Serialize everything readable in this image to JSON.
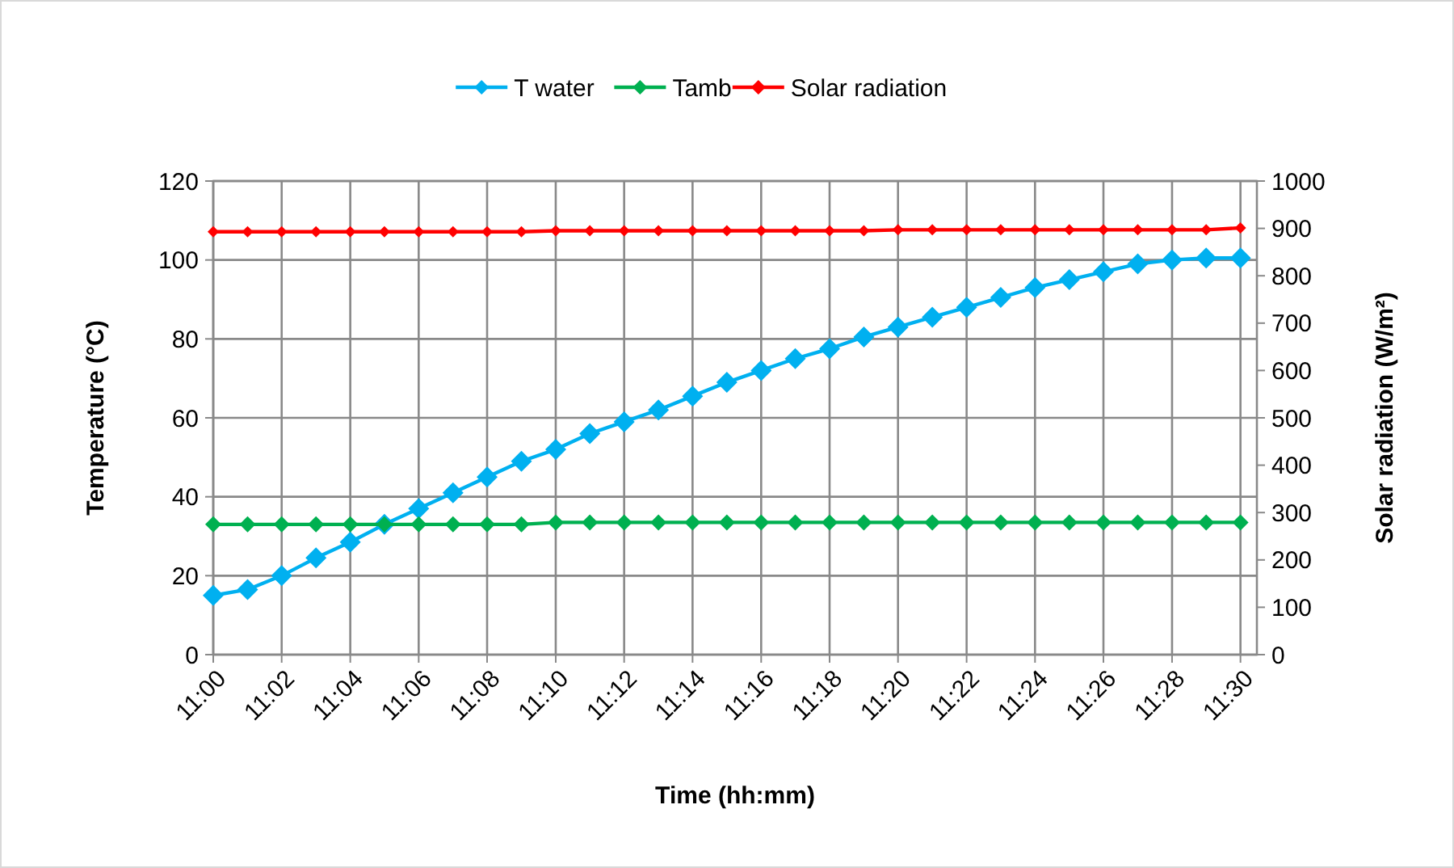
{
  "chart_data": {
    "type": "line",
    "xlabel": "Time (hh:mm)",
    "ylabel": "Temperature (°C)",
    "y2label": "Solar radiation  (W/m²)",
    "x": [
      11,
      11.0167,
      11.0333,
      11.05,
      11.0667,
      11.0833,
      11.1,
      11.1167,
      11.1333,
      11.15,
      11.1667,
      11.1833,
      11.2,
      11.2167,
      11.2333,
      11.25,
      11.2667,
      11.2833,
      11.3,
      11.3167,
      11.3333,
      11.35,
      11.3667,
      11.3833,
      11.4,
      11.4167,
      11.4333,
      11.45,
      11.4667,
      11.4833,
      11.5
    ],
    "xlim": [
      11,
      11.508
    ],
    "xticks": [
      {
        "value": 11,
        "label": "11:00"
      },
      {
        "value": 11.0333,
        "label": "11:02"
      },
      {
        "value": 11.0667,
        "label": "11:04"
      },
      {
        "value": 11.1,
        "label": "11:06"
      },
      {
        "value": 11.1333,
        "label": "11:08"
      },
      {
        "value": 11.1667,
        "label": "11:10"
      },
      {
        "value": 11.2,
        "label": "11:12"
      },
      {
        "value": 11.2333,
        "label": "11:14"
      },
      {
        "value": 11.2667,
        "label": "11:16"
      },
      {
        "value": 11.3,
        "label": "11:18"
      },
      {
        "value": 11.3333,
        "label": "11:20"
      },
      {
        "value": 11.3667,
        "label": "11:22"
      },
      {
        "value": 11.4,
        "label": "11:24"
      },
      {
        "value": 11.4333,
        "label": "11:26"
      },
      {
        "value": 11.4667,
        "label": "11:28"
      },
      {
        "value": 11.5,
        "label": "11:30"
      }
    ],
    "ylim": [
      0,
      120
    ],
    "yticks": [
      0,
      20,
      40,
      60,
      80,
      100,
      120
    ],
    "y2lim": [
      0,
      1000
    ],
    "y2ticks": [
      0,
      100,
      200,
      300,
      400,
      500,
      600,
      700,
      800,
      900,
      1000
    ],
    "grid": true,
    "legend": "top",
    "marker": "diamond",
    "series": [
      {
        "name": "T water",
        "color": "#00b0f0",
        "values": [
          15,
          16.5,
          20,
          24.5,
          28.5,
          33,
          37,
          41,
          45,
          49,
          52,
          56,
          59,
          62,
          65.5,
          69,
          72,
          75,
          77.5,
          80.5,
          83,
          85.5,
          88,
          90.5,
          93,
          95,
          97,
          99,
          100,
          100.5,
          100.5
        ]
      },
      {
        "name": "Tamb",
        "color": "#00b050",
        "values": [
          33,
          33,
          33,
          33,
          33,
          33,
          33,
          33,
          33,
          33,
          33.5,
          33.5,
          33.5,
          33.5,
          33.5,
          33.5,
          33.5,
          33.5,
          33.5,
          33.5,
          33.5,
          33.5,
          33.5,
          33.5,
          33.5,
          33.5,
          33.5,
          33.5,
          33.5,
          33.5,
          33.5
        ]
      },
      {
        "name": "Solar radiation",
        "color": "#ff0000",
        "axis": "y2",
        "values": [
          893,
          893,
          893,
          893,
          893,
          893,
          893,
          893,
          893,
          893,
          895,
          895,
          895,
          895,
          895,
          895,
          895,
          895,
          895,
          895,
          897,
          897,
          897,
          897,
          897,
          897,
          897,
          897,
          897,
          897,
          901
        ]
      }
    ]
  }
}
